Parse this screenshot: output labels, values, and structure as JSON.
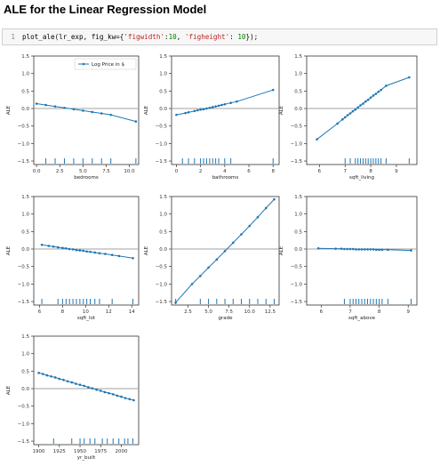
{
  "page": {
    "title": "ALE for the Linear Regression Model"
  },
  "code_cell": {
    "line_number": "1",
    "tokens": [
      {
        "cls": "fn",
        "text": "plot_ale(lr_exp, fig_kw={"
      },
      {
        "cls": "str",
        "text": "'figwidth'"
      },
      {
        "cls": "pun",
        "text": ":"
      },
      {
        "cls": "num",
        "text": "10"
      },
      {
        "cls": "pun",
        "text": ", "
      },
      {
        "cls": "str",
        "text": "'figheight'"
      },
      {
        "cls": "pun",
        "text": ": "
      },
      {
        "cls": "num",
        "text": "10"
      },
      {
        "cls": "pun",
        "text": "});"
      }
    ]
  },
  "colors": {
    "line": "#1f77b4",
    "zero": "#a0a0a0",
    "axis": "#333333"
  },
  "chart_data": [
    {
      "type": "line",
      "feature": "bedrooms",
      "xlabel": "bedrooms",
      "ylabel": "ALE",
      "ylim": [
        -1.6,
        1.5
      ],
      "yticks": [
        1.5,
        1.0,
        0.5,
        0.0,
        -0.5,
        -1.0,
        -1.5
      ],
      "yticklabels": [
        "1.5",
        "1.0",
        "0.5",
        "0.0",
        "−0.5",
        "−1.0",
        "−1.5"
      ],
      "xlim": [
        -0.3,
        11.0
      ],
      "xticks": [
        0,
        2.5,
        5.0,
        7.5,
        10.0
      ],
      "xticklabels": [
        "0.0",
        "2.5",
        "5.0",
        "7.5",
        "10.0"
      ],
      "legend": {
        "label": "Log Price in $",
        "loc": "upper right"
      },
      "x": [
        0,
        1,
        2,
        3,
        4,
        5,
        6,
        7,
        8,
        10.7
      ],
      "y": [
        0.14,
        0.1,
        0.06,
        0.02,
        -0.02,
        -0.06,
        -0.1,
        -0.14,
        -0.18,
        -0.37
      ],
      "rug": [
        1,
        2,
        3,
        4,
        5,
        6,
        7,
        8,
        10.7
      ]
    },
    {
      "type": "line",
      "feature": "bathrooms",
      "xlabel": "bathrooms",
      "ylabel": "ALE",
      "ylim": [
        -1.6,
        1.5
      ],
      "yticks": [
        1.5,
        1.0,
        0.5,
        0.0,
        -0.5,
        -1.0,
        -1.5
      ],
      "yticklabels": [
        "1.5",
        "1.0",
        "0.5",
        "0.0",
        "−0.5",
        "−1.0",
        "−1.5"
      ],
      "xlim": [
        -0.4,
        8.5
      ],
      "xticks": [
        0,
        2,
        4,
        6,
        8
      ],
      "xticklabels": [
        "0",
        "2",
        "4",
        "6",
        "8"
      ],
      "x": [
        0.0,
        0.75,
        1.0,
        1.5,
        1.75,
        2.0,
        2.25,
        2.5,
        2.75,
        3.0,
        3.25,
        3.5,
        3.75,
        4.0,
        4.5,
        5.0,
        8.0
      ],
      "y": [
        -0.18,
        -0.13,
        -0.11,
        -0.07,
        -0.05,
        -0.03,
        -0.02,
        0.0,
        0.02,
        0.04,
        0.06,
        0.08,
        0.1,
        0.12,
        0.16,
        0.2,
        0.53
      ],
      "rug": [
        0.5,
        1.0,
        1.5,
        2.0,
        2.25,
        2.5,
        2.75,
        3.0,
        3.25,
        3.5,
        4.0,
        4.5,
        8.0
      ]
    },
    {
      "type": "line",
      "feature": "sqft_living",
      "xlabel": "sqft_living",
      "ylabel": "ALE",
      "ylim": [
        -1.6,
        1.5
      ],
      "yticks": [
        1.5,
        1.0,
        0.5,
        0.0,
        -0.5,
        -1.0,
        -1.5
      ],
      "yticklabels": [
        "1.5",
        "1.0",
        "0.5",
        "0.0",
        "−0.5",
        "−1.0",
        "−1.5"
      ],
      "xlim": [
        5.5,
        9.8
      ],
      "xticks": [
        6,
        7,
        8,
        9
      ],
      "xticklabels": [
        "6",
        "7",
        "8",
        "9"
      ],
      "x": [
        5.9,
        6.7,
        6.9,
        7.0,
        7.1,
        7.2,
        7.3,
        7.4,
        7.5,
        7.6,
        7.7,
        7.8,
        7.9,
        8.0,
        8.1,
        8.2,
        8.3,
        8.4,
        8.6,
        9.5
      ],
      "y": [
        -0.88,
        -0.43,
        -0.31,
        -0.25,
        -0.19,
        -0.14,
        -0.08,
        -0.03,
        0.03,
        0.09,
        0.14,
        0.2,
        0.25,
        0.31,
        0.37,
        0.42,
        0.48,
        0.53,
        0.65,
        0.89
      ],
      "rug": [
        7.0,
        7.2,
        7.4,
        7.5,
        7.6,
        7.7,
        7.8,
        7.9,
        8.0,
        8.1,
        8.2,
        8.3,
        8.4,
        8.6,
        9.5
      ]
    },
    {
      "type": "line",
      "feature": "sqft_lot",
      "xlabel": "sqft_lot",
      "ylabel": "ALE",
      "ylim": [
        -1.6,
        1.5
      ],
      "yticks": [
        1.5,
        1.0,
        0.5,
        0.0,
        -0.5,
        -1.0,
        -1.5
      ],
      "yticklabels": [
        "1.5",
        "1.0",
        "0.5",
        "0.0",
        "−0.5",
        "−1.0",
        "−1.5"
      ],
      "xlim": [
        5.5,
        14.6
      ],
      "xticks": [
        6,
        8,
        10,
        12,
        14
      ],
      "xticklabels": [
        "6",
        "8",
        "10",
        "12",
        "14"
      ],
      "x": [
        6.2,
        6.8,
        7.2,
        7.6,
        8.0,
        8.3,
        8.6,
        8.9,
        9.2,
        9.5,
        9.8,
        10.1,
        10.4,
        10.8,
        11.2,
        11.7,
        12.3,
        12.9,
        14.1
      ],
      "y": [
        0.12,
        0.09,
        0.07,
        0.05,
        0.03,
        0.02,
        0.0,
        -0.01,
        -0.03,
        -0.04,
        -0.05,
        -0.07,
        -0.08,
        -0.1,
        -0.12,
        -0.14,
        -0.17,
        -0.2,
        -0.26
      ],
      "rug": [
        6.2,
        7.6,
        8.0,
        8.3,
        8.6,
        8.9,
        9.2,
        9.5,
        9.8,
        10.1,
        10.4,
        10.8,
        11.2,
        12.3,
        14.1
      ]
    },
    {
      "type": "line",
      "feature": "grade",
      "xlabel": "grade",
      "ylabel": "ALE",
      "ylim": [
        -1.6,
        1.5
      ],
      "yticks": [
        1.5,
        1.0,
        0.5,
        0.0,
        -0.5,
        -1.0,
        -1.5
      ],
      "yticklabels": [
        "1.5",
        "1.0",
        "0.5",
        "0.0",
        "−0.5",
        "−1.0",
        "−1.5"
      ],
      "xlim": [
        0.5,
        13.6
      ],
      "xticks": [
        2.5,
        5.0,
        7.5,
        10.0,
        12.5
      ],
      "xticklabels": [
        "2.5",
        "5.0",
        "7.5",
        "10.0",
        "12.5"
      ],
      "x": [
        1,
        3,
        4,
        5,
        6,
        7,
        8,
        9,
        10,
        11,
        12,
        13
      ],
      "y": [
        -1.53,
        -1.0,
        -0.77,
        -0.53,
        -0.3,
        -0.06,
        0.18,
        0.42,
        0.66,
        0.91,
        1.17,
        1.42
      ],
      "rug": [
        1,
        4,
        5,
        6,
        7,
        8,
        9,
        10,
        11,
        12,
        13
      ]
    },
    {
      "type": "line",
      "feature": "sqft_above",
      "xlabel": "sqft_above",
      "ylabel": "ALE",
      "ylim": [
        -1.6,
        1.5
      ],
      "yticks": [
        1.5,
        1.0,
        0.5,
        0.0,
        -0.5,
        -1.0,
        -1.5
      ],
      "yticklabels": [
        "1.5",
        "1.0",
        "0.5",
        "0.0",
        "−0.5",
        "−1.0",
        "−1.5"
      ],
      "xlim": [
        5.5,
        9.3
      ],
      "xticks": [
        6,
        7,
        8,
        9
      ],
      "xticklabels": [
        "6",
        "7",
        "8",
        "9"
      ],
      "x": [
        5.9,
        6.5,
        6.7,
        6.8,
        6.9,
        7.0,
        7.1,
        7.2,
        7.3,
        7.4,
        7.5,
        7.6,
        7.7,
        7.8,
        7.9,
        8.0,
        8.1,
        8.3,
        9.1
      ],
      "y": [
        0.02,
        0.01,
        0.01,
        0.0,
        0.0,
        0.0,
        0.0,
        -0.01,
        -0.01,
        -0.01,
        -0.01,
        -0.01,
        -0.01,
        -0.01,
        -0.02,
        -0.02,
        -0.02,
        -0.02,
        -0.04
      ],
      "rug": [
        6.8,
        7.0,
        7.1,
        7.2,
        7.3,
        7.4,
        7.5,
        7.6,
        7.7,
        7.8,
        7.9,
        8.0,
        8.1,
        8.3,
        9.1
      ]
    },
    {
      "type": "line",
      "feature": "yr_built",
      "xlabel": "yr_built",
      "ylabel": "ALE",
      "ylim": [
        -1.6,
        1.5
      ],
      "yticks": [
        1.5,
        1.0,
        0.5,
        0.0,
        -0.5,
        -1.0,
        -1.5
      ],
      "yticklabels": [
        "1.5",
        "1.0",
        "0.5",
        "0.0",
        "−0.5",
        "−1.0",
        "−1.5"
      ],
      "xlim": [
        1894,
        2021
      ],
      "xticks": [
        1900,
        1925,
        1950,
        1975,
        2000
      ],
      "xticklabels": [
        "1900",
        "1925",
        "1950",
        "1975",
        "2000"
      ],
      "x": [
        1900,
        1905,
        1910,
        1915,
        1920,
        1925,
        1930,
        1935,
        1940,
        1945,
        1950,
        1955,
        1960,
        1965,
        1970,
        1975,
        1980,
        1985,
        1990,
        1995,
        2000,
        2005,
        2010,
        2015
      ],
      "y": [
        0.45,
        0.42,
        0.38,
        0.35,
        0.32,
        0.28,
        0.25,
        0.21,
        0.18,
        0.14,
        0.11,
        0.08,
        0.04,
        0.01,
        -0.03,
        -0.06,
        -0.1,
        -0.13,
        -0.16,
        -0.2,
        -0.23,
        -0.27,
        -0.3,
        -0.33
      ],
      "rug": [
        1918,
        1940,
        1950,
        1955,
        1962,
        1968,
        1977,
        1983,
        1990,
        1997,
        2004,
        2008,
        2014
      ]
    }
  ]
}
